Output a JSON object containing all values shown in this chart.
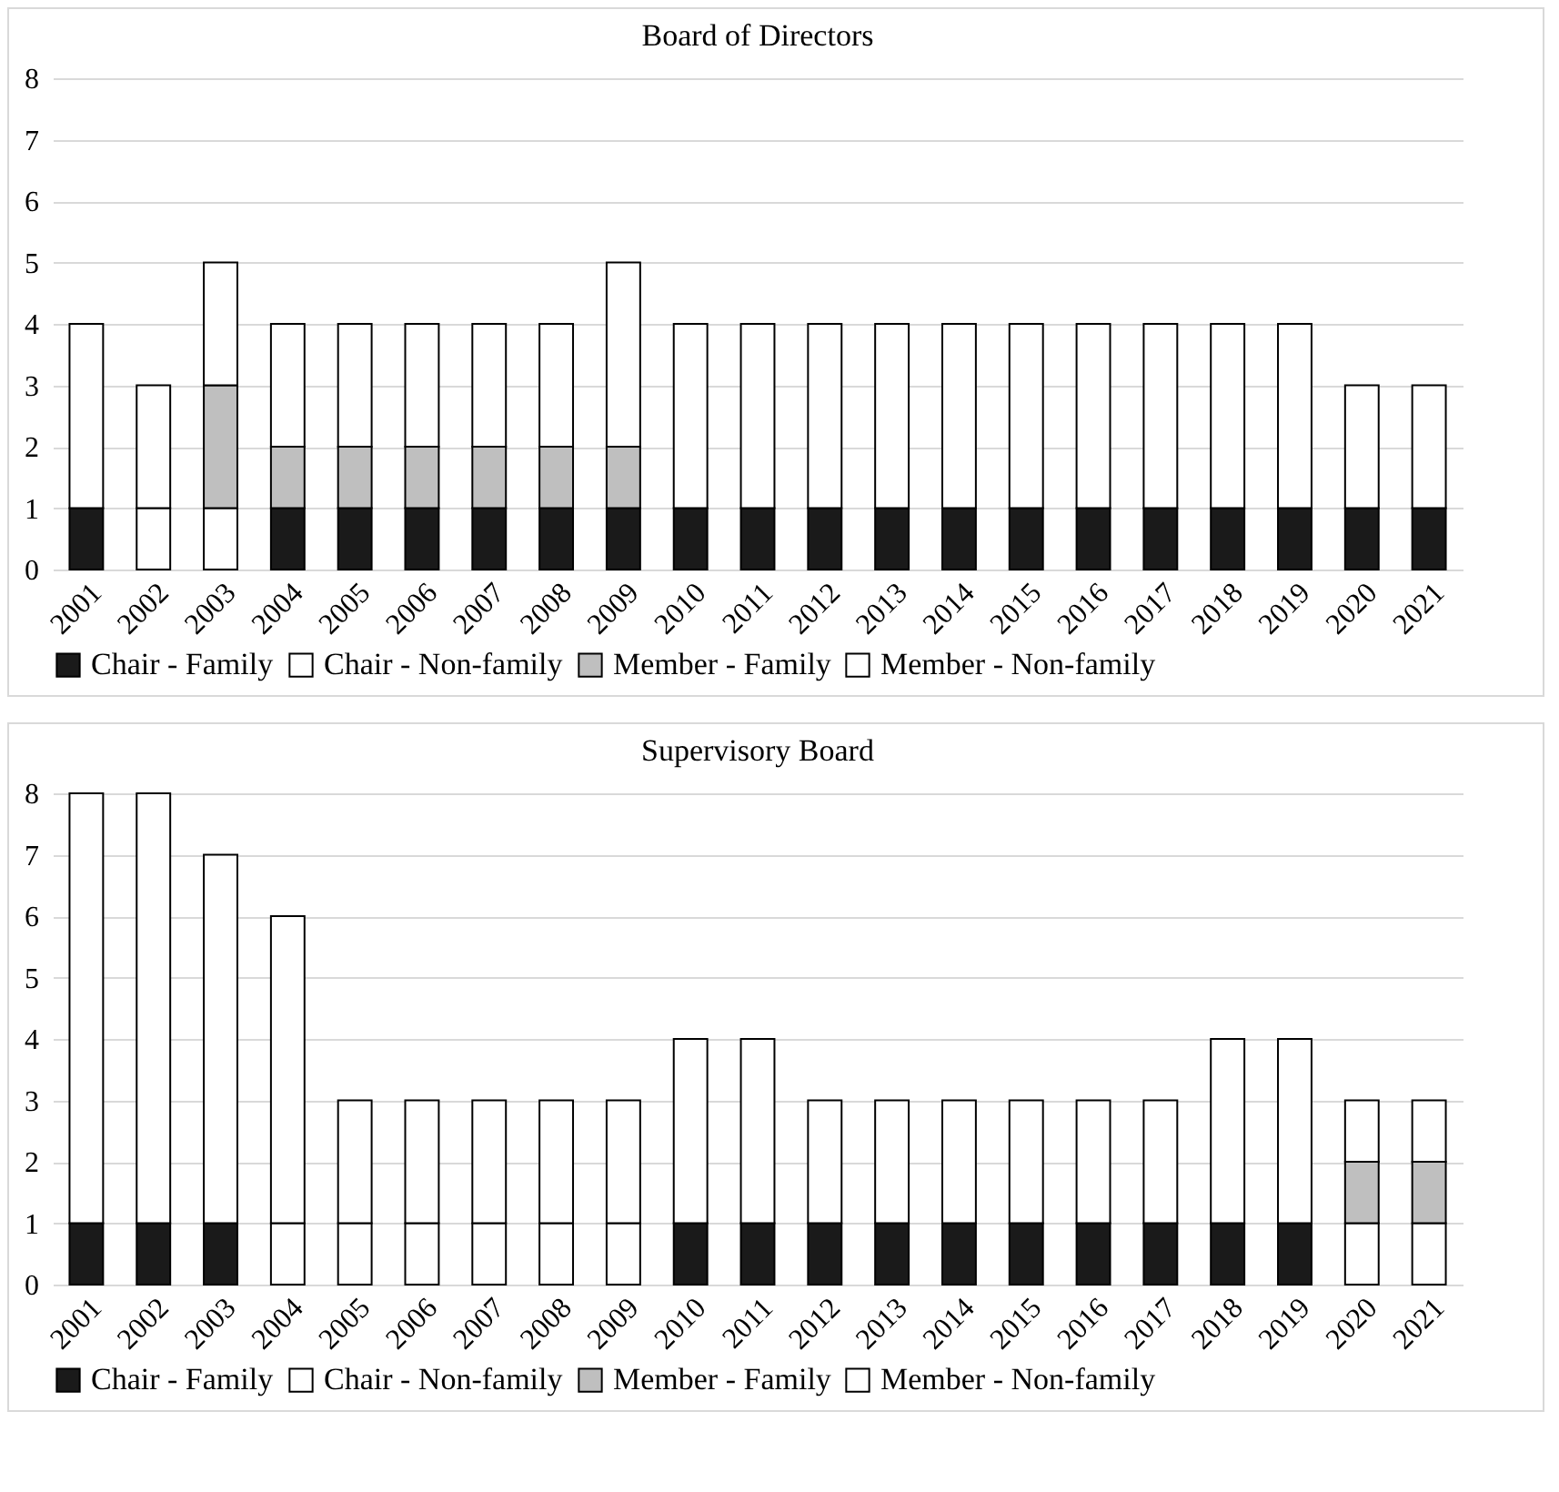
{
  "chart_data": [
    {
      "type": "bar",
      "title": "Board of Directors",
      "stacked": true,
      "grid": "y",
      "legend": "bottom",
      "categories": [
        "2001",
        "2002",
        "2003",
        "2004",
        "2005",
        "2006",
        "2007",
        "2008",
        "2009",
        "2010",
        "2011",
        "2012",
        "2013",
        "2014",
        "2015",
        "2016",
        "2017",
        "2018",
        "2019",
        "2020",
        "2021"
      ],
      "ylim": [
        0,
        8
      ],
      "yticks": [
        0,
        1,
        2,
        3,
        4,
        5,
        6,
        7,
        8
      ],
      "series": [
        {
          "name": "Chair - Family",
          "color": "#1a1a1a",
          "values": [
            1,
            0,
            0,
            1,
            1,
            1,
            1,
            1,
            1,
            1,
            1,
            1,
            1,
            1,
            1,
            1,
            1,
            1,
            1,
            1,
            1
          ]
        },
        {
          "name": "Chair - Non-family",
          "color": "#ffffff",
          "values": [
            0,
            1,
            1,
            0,
            0,
            0,
            0,
            0,
            0,
            0,
            0,
            0,
            0,
            0,
            0,
            0,
            0,
            0,
            0,
            0,
            0
          ]
        },
        {
          "name": "Member - Family",
          "color": "#bfbfbf",
          "values": [
            0,
            0,
            2,
            1,
            1,
            1,
            1,
            1,
            1,
            0,
            0,
            0,
            0,
            0,
            0,
            0,
            0,
            0,
            0,
            0,
            0
          ]
        },
        {
          "name": "Member - Non-family",
          "color": "#ffffff",
          "values": [
            3,
            2,
            2,
            2,
            2,
            2,
            2,
            2,
            3,
            3,
            3,
            3,
            3,
            3,
            3,
            3,
            3,
            3,
            3,
            2,
            2
          ]
        }
      ]
    },
    {
      "type": "bar",
      "title": "Supervisory Board",
      "stacked": true,
      "grid": "y",
      "legend": "bottom",
      "categories": [
        "2001",
        "2002",
        "2003",
        "2004",
        "2005",
        "2006",
        "2007",
        "2008",
        "2009",
        "2010",
        "2011",
        "2012",
        "2013",
        "2014",
        "2015",
        "2016",
        "2017",
        "2018",
        "2019",
        "2020",
        "2021"
      ],
      "ylim": [
        0,
        8
      ],
      "yticks": [
        0,
        1,
        2,
        3,
        4,
        5,
        6,
        7,
        8
      ],
      "series": [
        {
          "name": "Chair - Family",
          "color": "#1a1a1a",
          "values": [
            1,
            1,
            1,
            0,
            0,
            0,
            0,
            0,
            0,
            1,
            1,
            1,
            1,
            1,
            1,
            1,
            1,
            1,
            1,
            0,
            0
          ]
        },
        {
          "name": "Chair - Non-family",
          "color": "#ffffff",
          "values": [
            0,
            0,
            0,
            1,
            1,
            1,
            1,
            1,
            1,
            0,
            0,
            0,
            0,
            0,
            0,
            0,
            0,
            0,
            0,
            1,
            1
          ]
        },
        {
          "name": "Member - Family",
          "color": "#bfbfbf",
          "values": [
            0,
            0,
            0,
            0,
            0,
            0,
            0,
            0,
            0,
            0,
            0,
            0,
            0,
            0,
            0,
            0,
            0,
            0,
            0,
            1,
            1
          ]
        },
        {
          "name": "Member - Non-family",
          "color": "#ffffff",
          "values": [
            7,
            7,
            6,
            5,
            2,
            2,
            2,
            2,
            2,
            3,
            3,
            2,
            2,
            2,
            2,
            2,
            2,
            3,
            3,
            1,
            1
          ]
        }
      ]
    }
  ]
}
